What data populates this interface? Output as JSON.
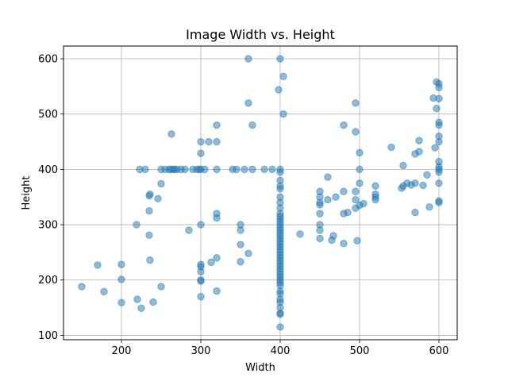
{
  "chart_data": {
    "type": "scatter",
    "title": "Image Width vs. Height",
    "xlabel": "Width",
    "ylabel": "Height",
    "xlim": [
      127,
      623
    ],
    "ylim": [
      92,
      623
    ],
    "xticks": [
      200,
      300,
      400,
      500,
      600
    ],
    "yticks": [
      100,
      200,
      300,
      400,
      500,
      600
    ],
    "grid": true,
    "legend": "none",
    "marker_color": "#1f77b4",
    "marker_alpha": 0.5,
    "points": [
      [
        150,
        188
      ],
      [
        170,
        227
      ],
      [
        178,
        179
      ],
      [
        200,
        228
      ],
      [
        200,
        201
      ],
      [
        200,
        159
      ],
      [
        220,
        165
      ],
      [
        225,
        149
      ],
      [
        219,
        300
      ],
      [
        223,
        400
      ],
      [
        230,
        400
      ],
      [
        235,
        281
      ],
      [
        235,
        325
      ],
      [
        235,
        352
      ],
      [
        236,
        355
      ],
      [
        236,
        236
      ],
      [
        240,
        160
      ],
      [
        246,
        347
      ],
      [
        250,
        374
      ],
      [
        250,
        188
      ],
      [
        250,
        400
      ],
      [
        255,
        400
      ],
      [
        260,
        400
      ],
      [
        262,
        400
      ],
      [
        263,
        464
      ],
      [
        265,
        400
      ],
      [
        267,
        400
      ],
      [
        270,
        400
      ],
      [
        275,
        400
      ],
      [
        280,
        400
      ],
      [
        285,
        290
      ],
      [
        290,
        400
      ],
      [
        295,
        400
      ],
      [
        298,
        400
      ],
      [
        300,
        450
      ],
      [
        300,
        429
      ],
      [
        300,
        400
      ],
      [
        300,
        300
      ],
      [
        300,
        228
      ],
      [
        300,
        224
      ],
      [
        300,
        215
      ],
      [
        300,
        200
      ],
      [
        300,
        198
      ],
      [
        300,
        170
      ],
      [
        305,
        400
      ],
      [
        310,
        450
      ],
      [
        313,
        232
      ],
      [
        320,
        450
      ],
      [
        320,
        480
      ],
      [
        320,
        400
      ],
      [
        320,
        320
      ],
      [
        320,
        312
      ],
      [
        320,
        240
      ],
      [
        320,
        180
      ],
      [
        340,
        400
      ],
      [
        345,
        400
      ],
      [
        350,
        300
      ],
      [
        350,
        290
      ],
      [
        350,
        264
      ],
      [
        350,
        233
      ],
      [
        355,
        400
      ],
      [
        360,
        600
      ],
      [
        360,
        520
      ],
      [
        360,
        248
      ],
      [
        365,
        480
      ],
      [
        365,
        400
      ],
      [
        380,
        400
      ],
      [
        390,
        400
      ],
      [
        398,
        544
      ],
      [
        400,
        600
      ],
      [
        400,
        400
      ],
      [
        400,
        395
      ],
      [
        400,
        380
      ],
      [
        400,
        370
      ],
      [
        400,
        365
      ],
      [
        400,
        350
      ],
      [
        400,
        340
      ],
      [
        400,
        330
      ],
      [
        400,
        320
      ],
      [
        400,
        315
      ],
      [
        400,
        310
      ],
      [
        400,
        305
      ],
      [
        400,
        300
      ],
      [
        400,
        295
      ],
      [
        400,
        290
      ],
      [
        400,
        285
      ],
      [
        400,
        280
      ],
      [
        400,
        275
      ],
      [
        400,
        270
      ],
      [
        400,
        265
      ],
      [
        400,
        260
      ],
      [
        400,
        255
      ],
      [
        400,
        250
      ],
      [
        400,
        245
      ],
      [
        400,
        240
      ],
      [
        400,
        235
      ],
      [
        400,
        230
      ],
      [
        400,
        225
      ],
      [
        400,
        220
      ],
      [
        400,
        215
      ],
      [
        400,
        210
      ],
      [
        400,
        205
      ],
      [
        400,
        200
      ],
      [
        400,
        195
      ],
      [
        400,
        190
      ],
      [
        400,
        180
      ],
      [
        400,
        175
      ],
      [
        400,
        165
      ],
      [
        400,
        160
      ],
      [
        400,
        150
      ],
      [
        400,
        140
      ],
      [
        400,
        138
      ],
      [
        400,
        115
      ],
      [
        404,
        568
      ],
      [
        404,
        500
      ],
      [
        425,
        283
      ],
      [
        450,
        360
      ],
      [
        450,
        350
      ],
      [
        450,
        340
      ],
      [
        450,
        336
      ],
      [
        450,
        320
      ],
      [
        450,
        300
      ],
      [
        450,
        290
      ],
      [
        450,
        275
      ],
      [
        460,
        386
      ],
      [
        460,
        345
      ],
      [
        465,
        272
      ],
      [
        467,
        280
      ],
      [
        470,
        350
      ],
      [
        480,
        480
      ],
      [
        480,
        360
      ],
      [
        480,
        320
      ],
      [
        480,
        266
      ],
      [
        485,
        322
      ],
      [
        495,
        520
      ],
      [
        495,
        468
      ],
      [
        495,
        360
      ],
      [
        495,
        345
      ],
      [
        495,
        330
      ],
      [
        497,
        271
      ],
      [
        500,
        430
      ],
      [
        500,
        400
      ],
      [
        500,
        375
      ],
      [
        500,
        335
      ],
      [
        505,
        338
      ],
      [
        520,
        355
      ],
      [
        520,
        350
      ],
      [
        520,
        345
      ],
      [
        520,
        370
      ],
      [
        540,
        440
      ],
      [
        553,
        366
      ],
      [
        555,
        370
      ],
      [
        555,
        407
      ],
      [
        560,
        375
      ],
      [
        565,
        372
      ],
      [
        570,
        428
      ],
      [
        570,
        375
      ],
      [
        570,
        322
      ],
      [
        575,
        432
      ],
      [
        575,
        452
      ],
      [
        580,
        371
      ],
      [
        585,
        390
      ],
      [
        588,
        332
      ],
      [
        593,
        529
      ],
      [
        595,
        439
      ],
      [
        597,
        558
      ],
      [
        597,
        510
      ],
      [
        600,
        555
      ],
      [
        600,
        548
      ],
      [
        600,
        528
      ],
      [
        600,
        485
      ],
      [
        600,
        480
      ],
      [
        600,
        460
      ],
      [
        600,
        450
      ],
      [
        600,
        414
      ],
      [
        600,
        405
      ],
      [
        600,
        400
      ],
      [
        600,
        395
      ],
      [
        600,
        375
      ],
      [
        600,
        343
      ],
      [
        600,
        340
      ]
    ]
  }
}
